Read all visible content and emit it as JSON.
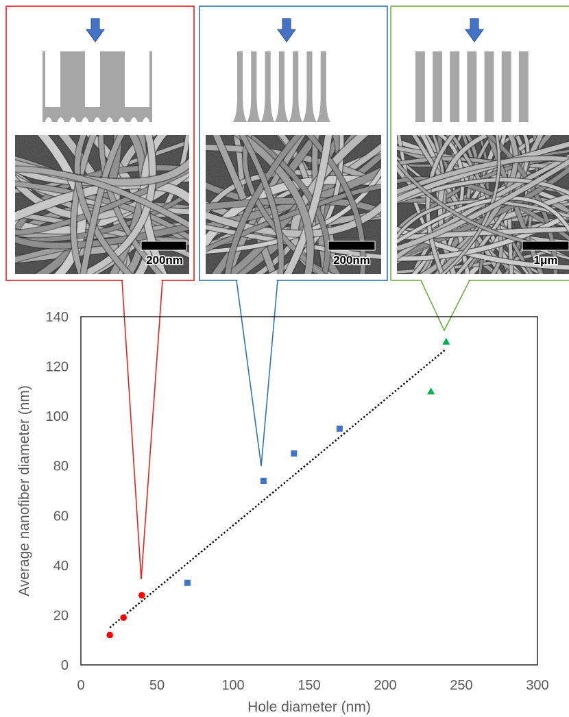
{
  "colors": {
    "red": "#e8201c",
    "blue": "#2e75b6",
    "green": "#70ad47",
    "red_marker": "#ff0000",
    "blue_marker": "#4472c4",
    "green_marker": "#00b050",
    "arrow": "#4472c4",
    "template": "#a6a6a6",
    "axis_text": "#595959"
  },
  "panels": [
    {
      "scale_label": "200nm",
      "border_color": "red",
      "arrow_icon": "down-arrow-icon",
      "template_shape": "tapered-bars"
    },
    {
      "scale_label": "200nm",
      "border_color": "blue",
      "arrow_icon": "down-arrow-icon",
      "template_shape": "flared-bars"
    },
    {
      "scale_label": "1μm",
      "border_color": "green",
      "arrow_icon": "down-arrow-icon",
      "template_shape": "straight-bars"
    }
  ],
  "chart_data": {
    "type": "scatter",
    "xlabel": "Hole diameter (nm)",
    "ylabel": "Average nanofiber diameter (nm)",
    "xlim": [
      0,
      300
    ],
    "ylim": [
      0,
      140
    ],
    "xticks": [
      0,
      50,
      100,
      150,
      200,
      250,
      300
    ],
    "yticks": [
      0,
      20,
      40,
      60,
      80,
      100,
      120,
      140
    ],
    "xtick_labels": [
      "0",
      "50",
      "100",
      "150",
      "200",
      "250",
      "300"
    ],
    "ytick_labels": [
      "0",
      "20",
      "40",
      "60",
      "80",
      "100",
      "120",
      "140"
    ],
    "grid": false,
    "series": [
      {
        "marker": "circle",
        "color": "#ff0000",
        "x": [
          19,
          28,
          40
        ],
        "y": [
          12,
          19,
          28
        ]
      },
      {
        "marker": "square",
        "color": "#4472c4",
        "x": [
          70,
          120,
          140,
          170
        ],
        "y": [
          33,
          74,
          85,
          95
        ]
      },
      {
        "marker": "triangle",
        "color": "#00b050",
        "x": [
          230,
          240
        ],
        "y": [
          110,
          130
        ]
      }
    ],
    "trendline": {
      "style": "dotted",
      "color": "#000000",
      "x": [
        19,
        240
      ],
      "y": [
        15,
        127
      ]
    }
  }
}
